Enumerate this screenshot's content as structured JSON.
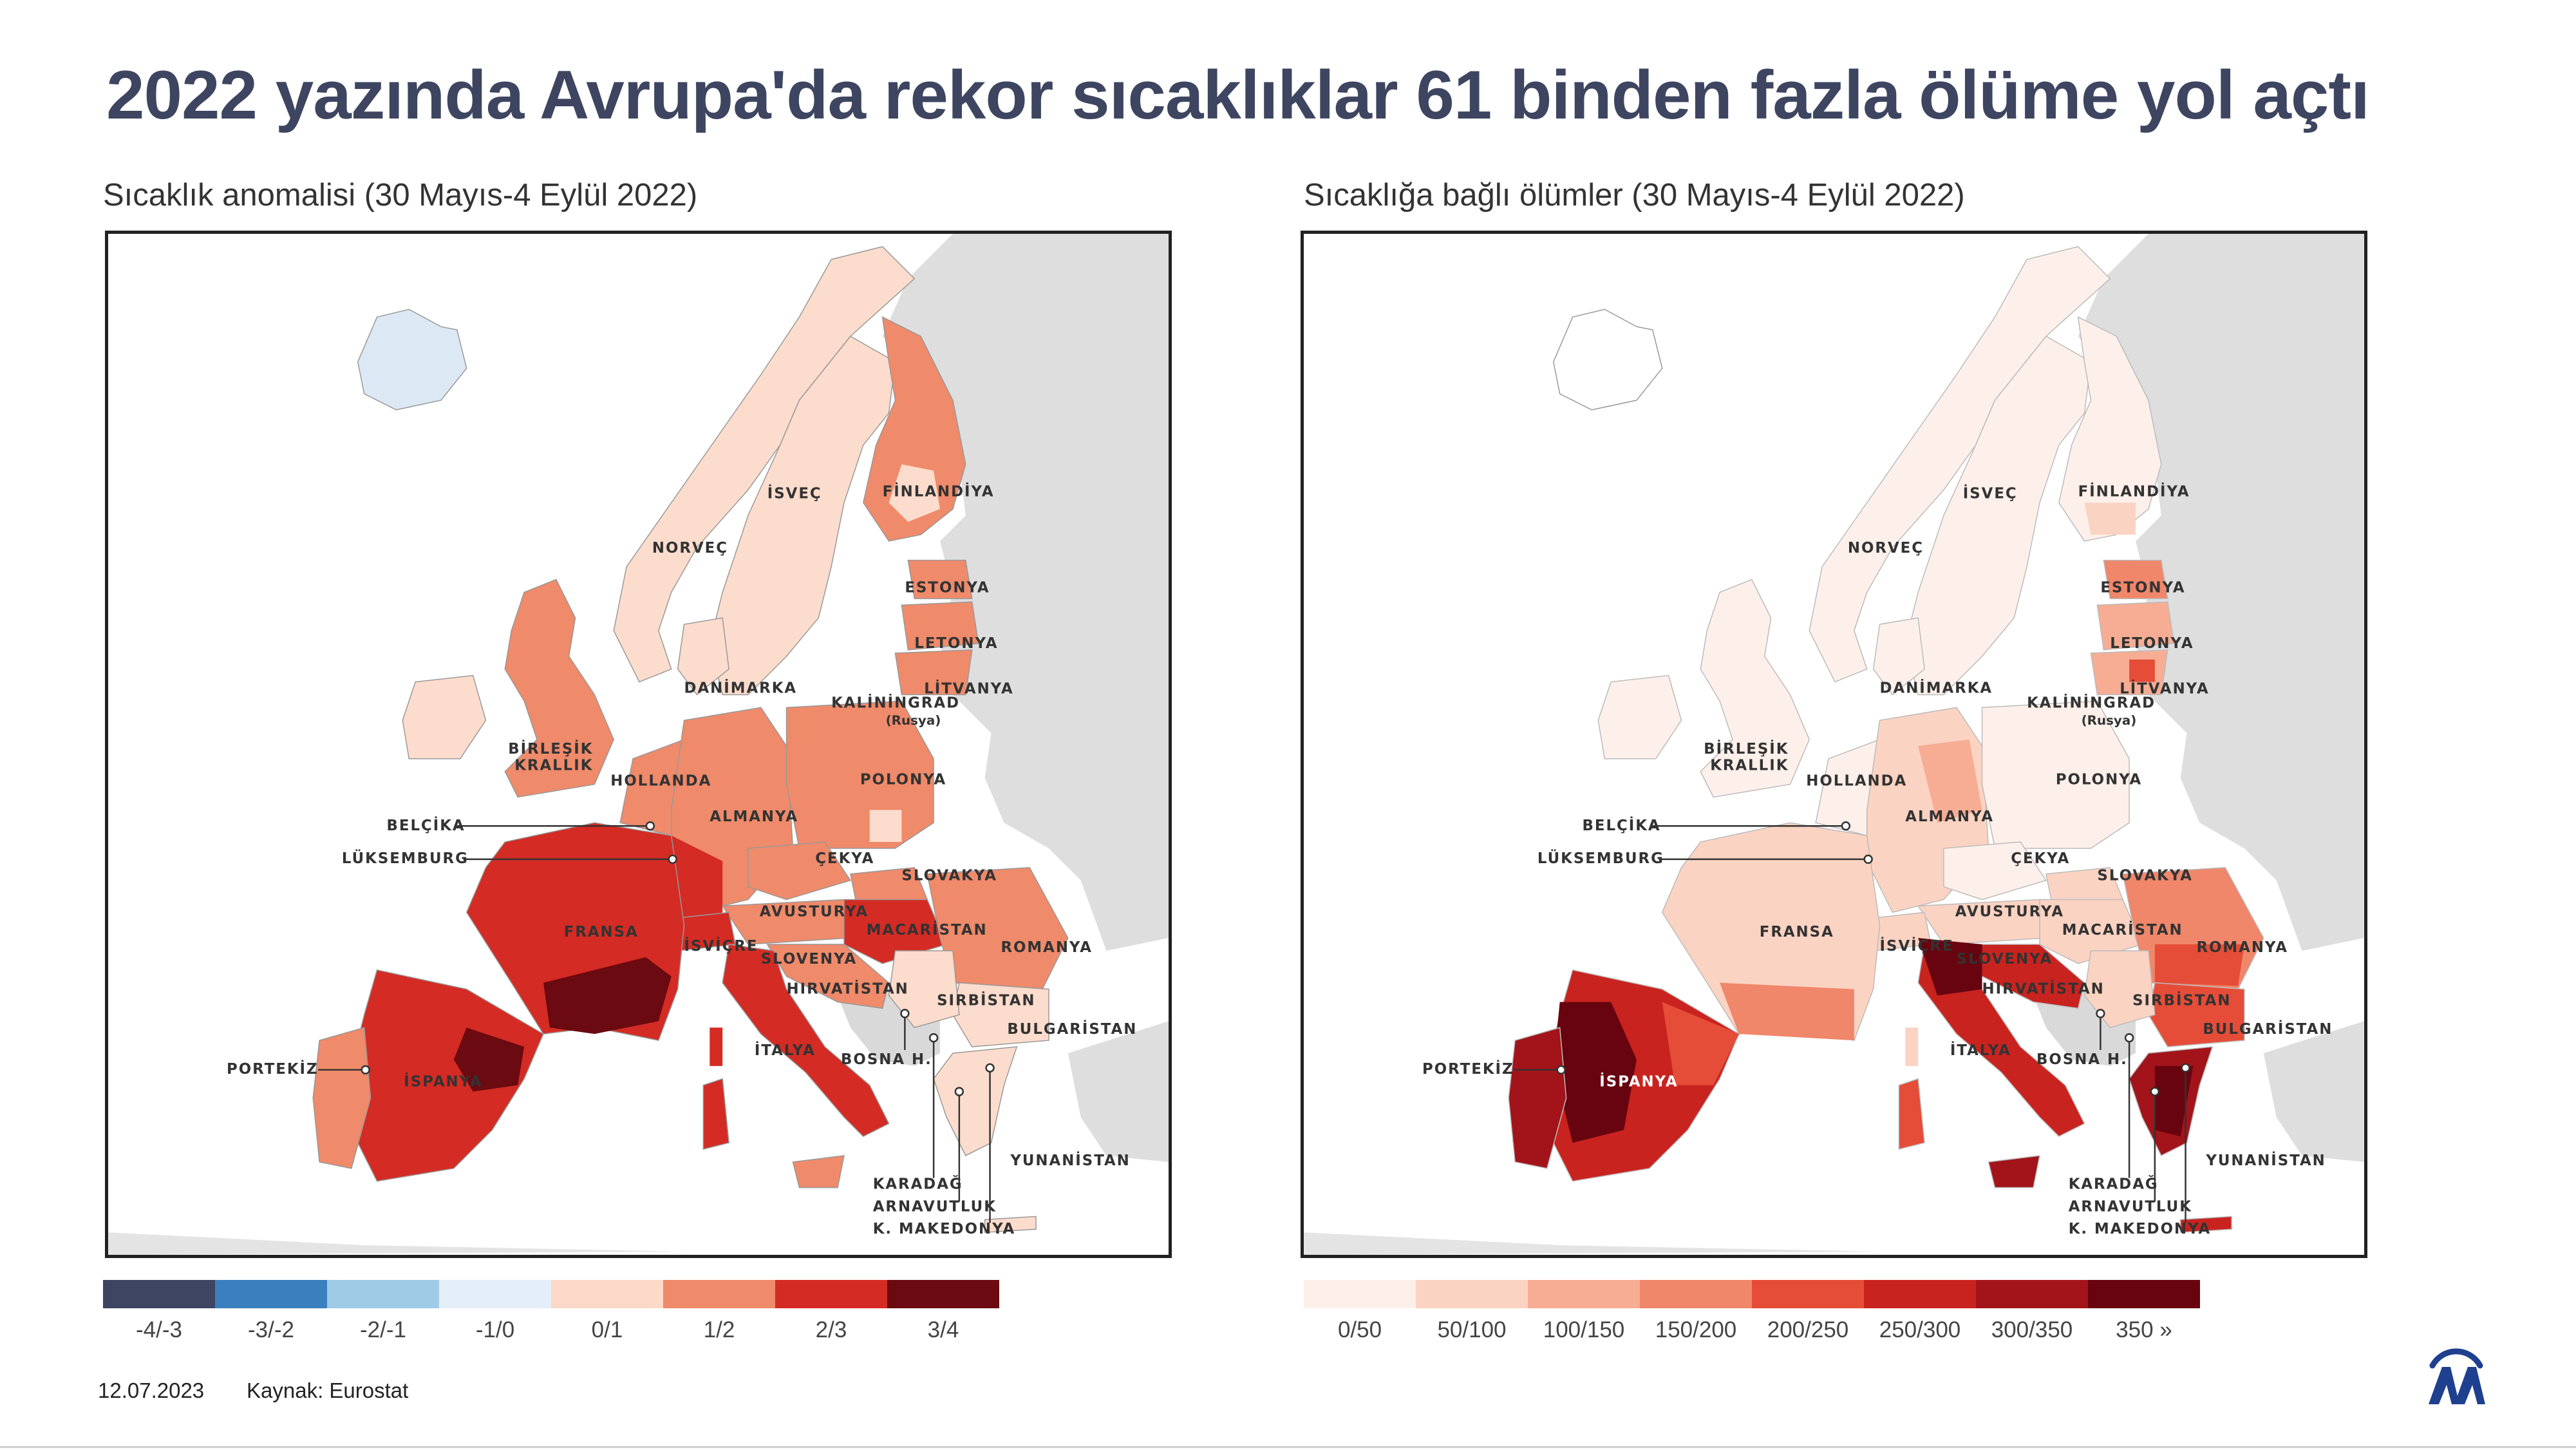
{
  "title": "2022 yazında Avrupa'da rekor sıcaklıklar 61 binden fazla ölüme yol açtı",
  "left_map": {
    "subtitle": "Sıcaklık anomalisi (30 Mayıs-4 Eylül 2022)",
    "legend": [
      {
        "label": "-4/-3",
        "color": "#3d4563"
      },
      {
        "label": "-3/-2",
        "color": "#3b7fbf"
      },
      {
        "label": "-2/-1",
        "color": "#9fcbe6"
      },
      {
        "label": "-1/0",
        "color": "#e4eef8"
      },
      {
        "label": "0/1",
        "color": "#fcd9c8"
      },
      {
        "label": "1/2",
        "color": "#ef8a6a"
      },
      {
        "label": "2/3",
        "color": "#d42b24"
      },
      {
        "label": "3/4",
        "color": "#6b0a10"
      }
    ]
  },
  "right_map": {
    "subtitle": "Sıcaklığa bağlı ölümler (30 Mayıs-4 Eylül 2022)",
    "legend": [
      {
        "label": "0/50",
        "color": "#fdf0ea"
      },
      {
        "label": "50/100",
        "color": "#fbd3c2"
      },
      {
        "label": "100/150",
        "color": "#f6ad94"
      },
      {
        "label": "150/200",
        "color": "#f0866a"
      },
      {
        "label": "200/250",
        "color": "#e54d38"
      },
      {
        "label": "250/300",
        "color": "#c9231f"
      },
      {
        "label": "300/350",
        "color": "#a2141a"
      },
      {
        "label": "350 »",
        "color": "#67040f"
      }
    ]
  },
  "countries": {
    "isvec": "İSVEÇ",
    "finlandiya": "FİNLANDİYA",
    "norvec": "NORVEÇ",
    "estonya": "ESTONYA",
    "letonya": "LETONYA",
    "litvanya": "LİTVANYA",
    "danimarka": "DANİMARKA",
    "kaliningrad": "KALİNİNGRAD",
    "rusya": "(Rusya)",
    "birlesik1": "BİRLEŞİK",
    "birlesik2": "KRALLIK",
    "hollanda": "HOLLANDA",
    "polonya": "POLONYA",
    "almanya": "ALMANYA",
    "belcika": "BELÇİKA",
    "luksemburg": "LÜKSEMBURG",
    "cekya": "ÇEKYA",
    "slovakya": "SLOVAKYA",
    "fransa": "FRANSA",
    "avusturya": "AVUSTURYA",
    "macaristan": "MACARİSTAN",
    "romanya": "ROMANYA",
    "isvicre": "İSVİÇRE",
    "slovenya": "SLOVENYA",
    "hirvatistan": "HIRVATİSTAN",
    "sirbistan": "SIRBİSTAN",
    "bulgaristan": "BULGARİSTAN",
    "portekiz": "PORTEKİZ",
    "ispanya": "İSPANYA",
    "italya": "İTALYA",
    "bosna": "BOSNA H.",
    "yunanistan": "YUNANİSTAN",
    "karadag": "KARADAĞ",
    "arnavutluk": "ARNAVUTLUK",
    "makedonya": "K. MAKEDONYA"
  },
  "footer": {
    "date": "12.07.2023",
    "source": "Kaynak: Eurostat"
  },
  "colors": {
    "title": "#3d4560",
    "non_eu": "#d9d9d9",
    "iceland": "#dde8f5"
  }
}
